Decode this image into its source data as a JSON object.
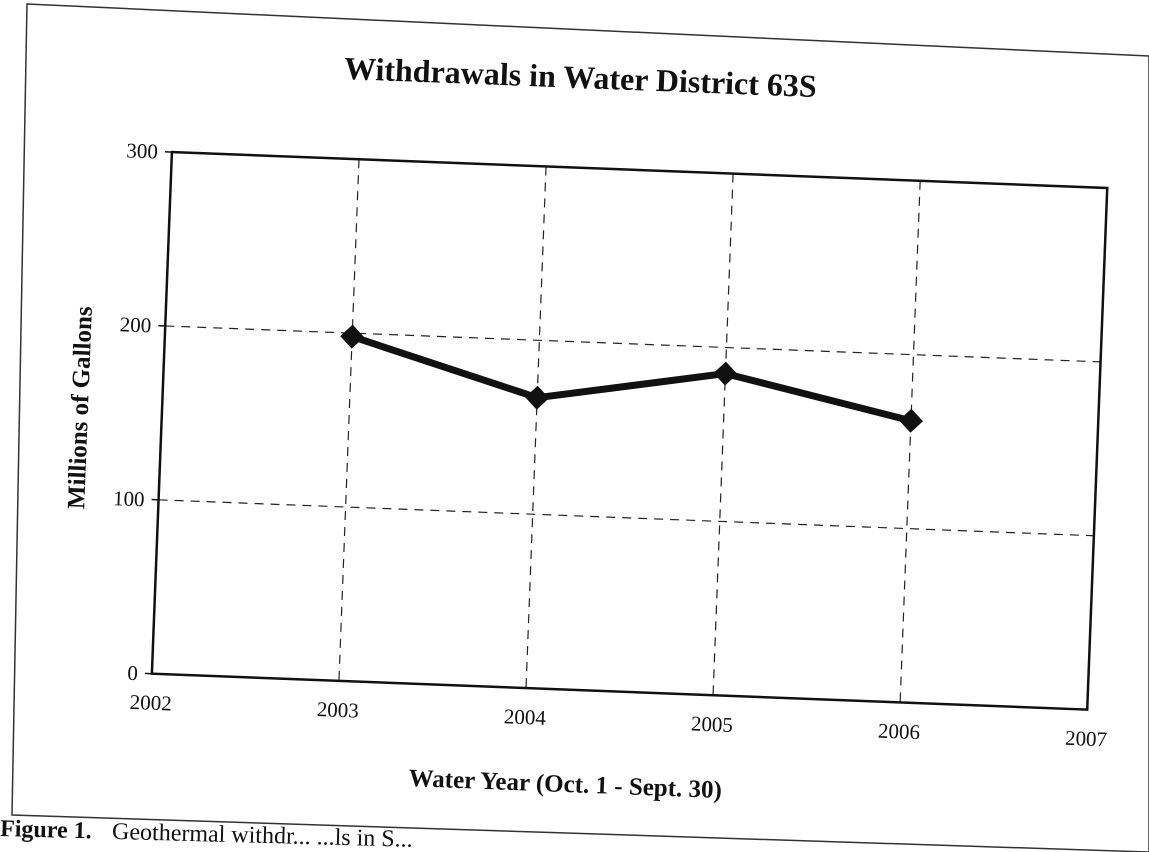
{
  "chart_data": {
    "type": "line",
    "title": "Withdrawals in Water District 63S",
    "xlabel": "Water Year (Oct. 1 - Sept. 30)",
    "ylabel": "Millions of Gallons",
    "x": [
      2003,
      2004,
      2005,
      2006
    ],
    "series": [
      {
        "values": [
          198,
          167,
          185,
          162
        ]
      }
    ],
    "xlim": [
      2002,
      2007
    ],
    "ylim": [
      0,
      300
    ],
    "xticks": [
      "2002",
      "2003",
      "2004",
      "2005",
      "2006",
      "2007"
    ],
    "yticks": [
      "0",
      "100",
      "200",
      "300"
    ],
    "grid": true,
    "marker": "diamond",
    "line_color": "#111111"
  },
  "caption": {
    "label": "Figure 1.",
    "text": "Geothermal withdr...  ...ls in S..."
  }
}
